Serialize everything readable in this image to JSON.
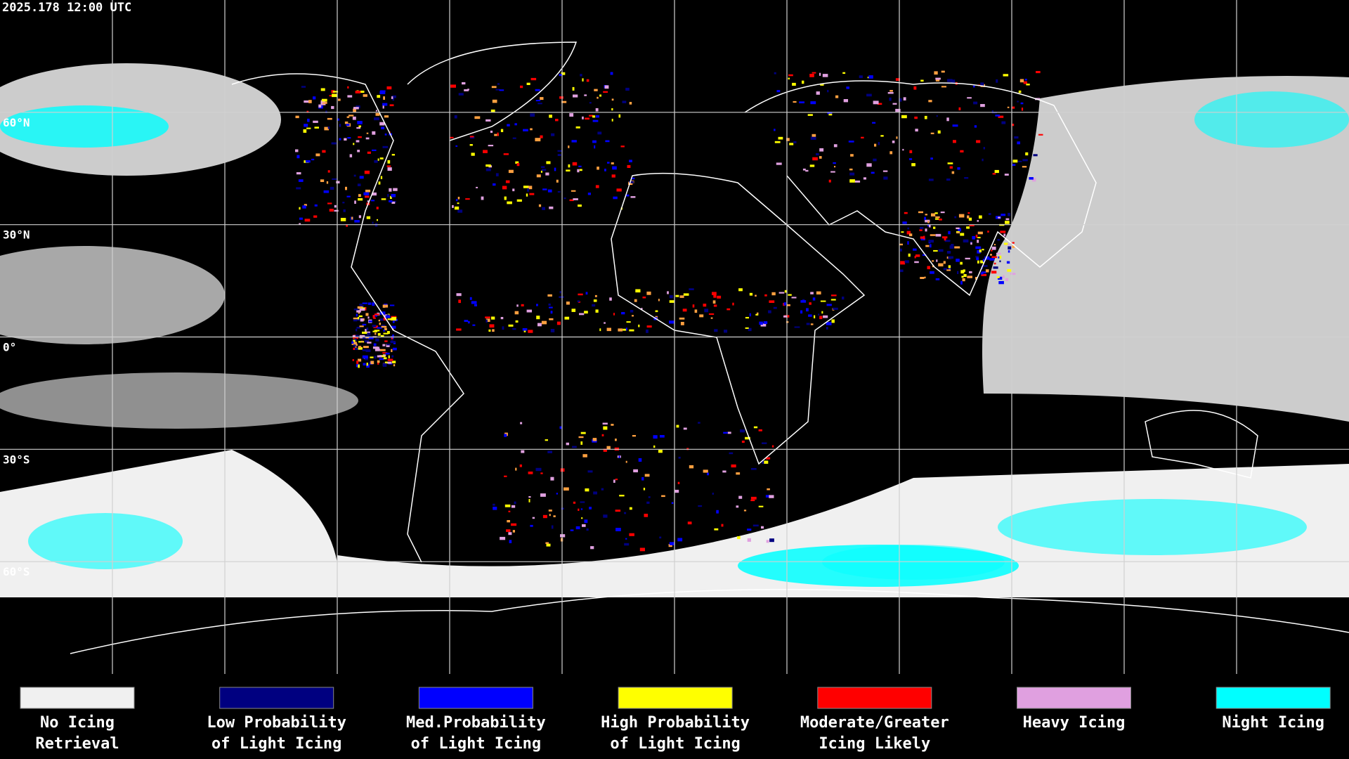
{
  "header": {
    "timestamp": "2025.178 12:00 UTC"
  },
  "map": {
    "latitude_labels": [
      "60°N",
      "30°N",
      "0°",
      "30°S",
      "60°S"
    ]
  },
  "legend": {
    "items": [
      {
        "label_lines": [
          "No Icing",
          "Retrieval"
        ],
        "color": "#f0f0f0"
      },
      {
        "label_lines": [
          "Low Probability",
          "of Light Icing"
        ],
        "color": "#000080"
      },
      {
        "label_lines": [
          "Med.Probability",
          "of Light Icing"
        ],
        "color": "#0000ff"
      },
      {
        "label_lines": [
          "High Probability",
          "of Light Icing"
        ],
        "color": "#ffff00"
      },
      {
        "label_lines": [
          "Moderate/Greater",
          "Icing Likely"
        ],
        "color": "#ff0000"
      },
      {
        "label_lines": [
          "Heavy Icing"
        ],
        "color": "#e0a0e0"
      },
      {
        "label_lines": [
          "Night Icing"
        ],
        "color": "#00ffff"
      }
    ]
  }
}
